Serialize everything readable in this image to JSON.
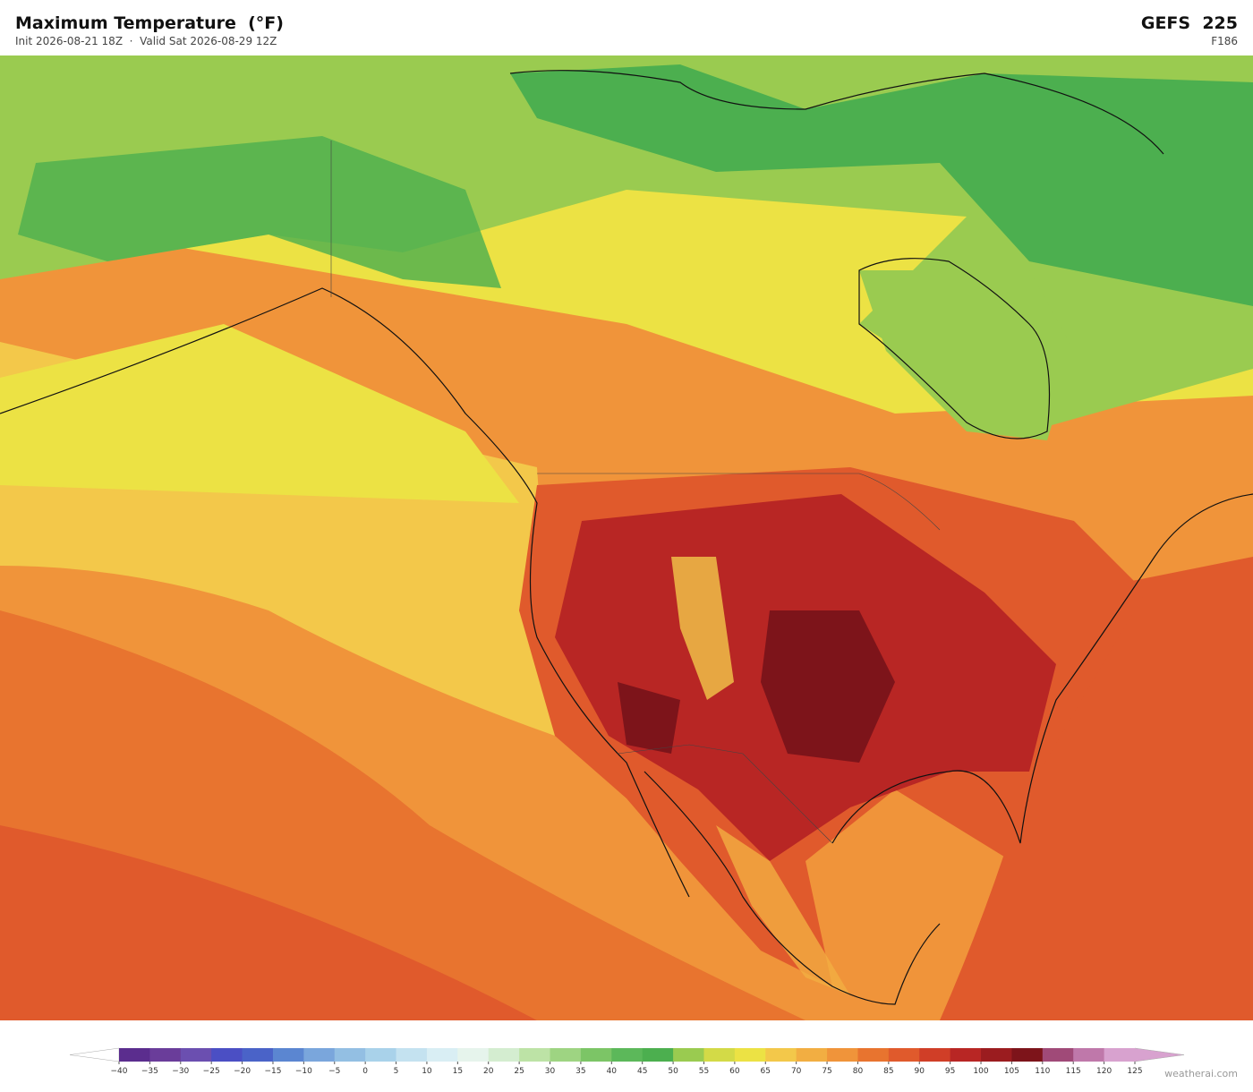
{
  "header": {
    "title": "Maximum Temperature  (°F)",
    "subtitle": "Init 2026-08-21 18Z  ·  Valid Sat 2026-08-29 12Z",
    "model": "GEFS  225",
    "forecast_hour": "F186"
  },
  "colorbar": {
    "ticks": [
      {
        "value": -40,
        "label": "−40"
      },
      {
        "value": -35,
        "label": "−35"
      },
      {
        "value": -30,
        "label": "−30"
      },
      {
        "value": -25,
        "label": "−25"
      },
      {
        "value": -20,
        "label": "−20"
      },
      {
        "value": -15,
        "label": "−15"
      },
      {
        "value": -10,
        "label": "−10"
      },
      {
        "value": -5,
        "label": "−5"
      },
      0,
      5,
      10,
      15,
      20,
      25,
      30,
      35,
      40,
      45,
      50,
      55,
      60,
      65,
      70,
      75,
      80,
      85,
      90,
      95,
      100,
      105,
      110,
      115,
      120,
      125
    ],
    "colors": [
      "#5b2d8e",
      "#6a3d9a",
      "#6b4fb0",
      "#4b4fc4",
      "#4a63c8",
      "#5b86d1",
      "#7aa6dc",
      "#93bfe3",
      "#a9d2ea",
      "#c4e2f0",
      "#d9eef4",
      "#e6f4ec",
      "#d4edd0",
      "#bde3a6",
      "#9ed482",
      "#7cc566",
      "#5cb85a",
      "#4caf4f",
      "#9acb50",
      "#d3da47",
      "#ece244",
      "#f3c84a",
      "#f2ae42",
      "#f0943a",
      "#e8742f",
      "#e05a2c",
      "#d03e27",
      "#b82624",
      "#9b1c1f",
      "#7d141a",
      "#a04a78",
      "#bf78aa",
      "#d8a2cf"
    ],
    "under_color": "#ffffff",
    "over_color": "#d8a2cf"
  },
  "footer": {
    "credit": "weatherai.com"
  }
}
